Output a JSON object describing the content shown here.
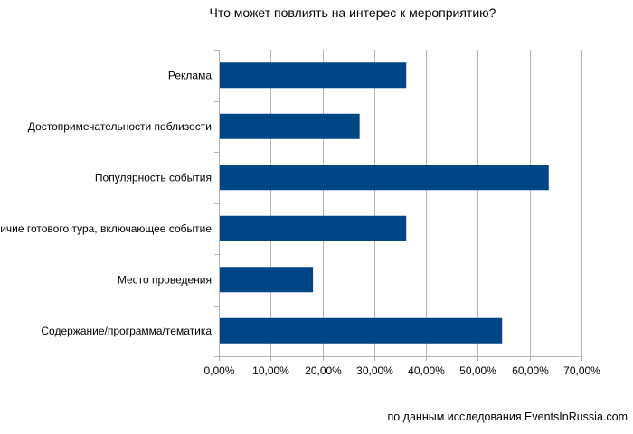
{
  "chart_data": {
    "type": "bar",
    "orientation": "horizontal",
    "title": "Что может повлиять на интерес к мероприятию?",
    "categories": [
      "Реклама",
      "Достопримечательности поблизости",
      "Популярность события",
      "Наличие готового тура, включающее событие",
      "Место проведения",
      "Содержание/программа/тематика"
    ],
    "values": [
      36.0,
      27.0,
      63.5,
      36.0,
      18.0,
      54.5
    ],
    "xlim": [
      0,
      70
    ],
    "xticks": [
      0,
      10,
      20,
      30,
      40,
      50,
      60,
      70
    ],
    "xtick_labels": [
      "0,00%",
      "10,00%",
      "20,00%",
      "30,00%",
      "40,00%",
      "50,00%",
      "60,00%",
      "70,00%"
    ],
    "xlabel": "",
    "ylabel": "",
    "grid": "vertical",
    "legend": "none",
    "bar_color": "#004586"
  },
  "footer": {
    "source": "по данным исследования EventsInRussia.com"
  }
}
